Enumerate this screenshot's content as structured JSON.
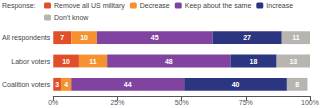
{
  "chart_data": {
    "type": "bar",
    "orientation": "horizontal",
    "stacked": true,
    "data_labels": true,
    "legend_title": "Response:",
    "legend": "upper left",
    "grid": false,
    "categories": [
      "All respondents",
      "Labor voters",
      "Coalition voters"
    ],
    "series": [
      {
        "name": "Remove all US military",
        "color": "#e04e2a",
        "values": [
          7,
          10,
          3
        ]
      },
      {
        "name": "Decrease",
        "color": "#f5922f",
        "values": [
          10,
          11,
          4
        ]
      },
      {
        "name": "Keep about the same",
        "color": "#8044a0",
        "values": [
          45,
          48,
          44
        ]
      },
      {
        "name": "Increase",
        "color": "#2b3580",
        "values": [
          27,
          18,
          40
        ]
      },
      {
        "name": "Don't know",
        "color": "#b8b5b0",
        "values": [
          11,
          13,
          8
        ]
      }
    ],
    "xlim": [
      0,
      100
    ],
    "xticks": [
      {
        "value": 0,
        "label": "0%"
      },
      {
        "value": 25,
        "label": "25%"
      },
      {
        "value": 50,
        "label": "50%"
      },
      {
        "value": 75,
        "label": "75%"
      },
      {
        "value": 100,
        "label": "100%"
      }
    ]
  }
}
